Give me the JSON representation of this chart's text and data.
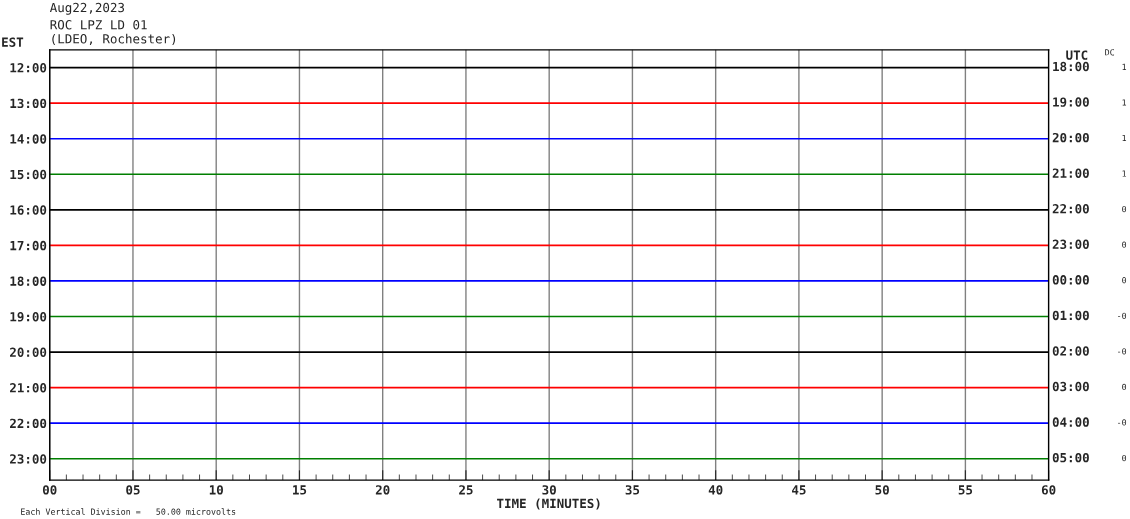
{
  "chart_data": {
    "type": "line",
    "title": "Aug22,2023",
    "subtitle": "ROC LPZ LD 01\n(LDEO, Rochester)",
    "xlabel": "TIME (MINUTES)",
    "ylabel": "EST",
    "xlim": [
      0,
      60
    ],
    "xticks": [
      {
        "value": 0,
        "label": "00"
      },
      {
        "value": 1,
        "label": null
      },
      {
        "value": 2,
        "label": null
      },
      {
        "value": 3,
        "label": null
      },
      {
        "value": 4,
        "label": null
      },
      {
        "value": 5,
        "label": "05"
      },
      {
        "value": 6,
        "label": null
      },
      {
        "value": 7,
        "label": null
      },
      {
        "value": 8,
        "label": null
      },
      {
        "value": 9,
        "label": null
      },
      10,
      {
        "value": 11,
        "label": null
      },
      {
        "value": 12,
        "label": null
      },
      {
        "value": 13,
        "label": null
      },
      {
        "value": 14,
        "label": null
      },
      15,
      {
        "value": 16,
        "label": null
      },
      {
        "value": 17,
        "label": null
      },
      {
        "value": 18,
        "label": null
      },
      {
        "value": 19,
        "label": null
      },
      20,
      {
        "value": 21,
        "label": null
      },
      {
        "value": 22,
        "label": null
      },
      {
        "value": 23,
        "label": null
      },
      {
        "value": 24,
        "label": null
      },
      25,
      {
        "value": 26,
        "label": null
      },
      {
        "value": 27,
        "label": null
      },
      {
        "value": 28,
        "label": null
      },
      {
        "value": 29,
        "label": null
      },
      30,
      {
        "value": 31,
        "label": null
      },
      {
        "value": 32,
        "label": null
      },
      {
        "value": 33,
        "label": null
      },
      {
        "value": 34,
        "label": null
      },
      35,
      {
        "value": 36,
        "label": null
      },
      {
        "value": 37,
        "label": null
      },
      {
        "value": 38,
        "label": null
      },
      {
        "value": 39,
        "label": null
      },
      40,
      {
        "value": 41,
        "label": null
      },
      {
        "value": 42,
        "label": null
      },
      {
        "value": 43,
        "label": null
      },
      {
        "value": 44,
        "label": null
      },
      45,
      {
        "value": 46,
        "label": null
      },
      {
        "value": 47,
        "label": null
      },
      {
        "value": 48,
        "label": null
      },
      {
        "value": 49,
        "label": null
      },
      50,
      {
        "value": 51,
        "label": null
      },
      {
        "value": 52,
        "label": null
      },
      {
        "value": 53,
        "label": null
      },
      {
        "value": 54,
        "label": null
      },
      55,
      {
        "value": 56,
        "label": null
      },
      {
        "value": 57,
        "label": null
      },
      {
        "value": 58,
        "label": null
      },
      {
        "value": 59,
        "label": null
      },
      60
    ],
    "ylim": [
      23.6,
      11.5
    ],
    "yticks": [
      {
        "value": 12,
        "label": "12:00"
      },
      {
        "value": 13,
        "label": "13:00"
      },
      {
        "value": 14,
        "label": "14:00"
      },
      {
        "value": 15,
        "label": "15:00"
      },
      {
        "value": 16,
        "label": "16:00"
      },
      {
        "value": 17,
        "label": "17:00"
      },
      {
        "value": 18,
        "label": "18:00"
      },
      {
        "value": 19,
        "label": "19:00"
      },
      {
        "value": 20,
        "label": "20:00"
      },
      {
        "value": 21,
        "label": "21:00"
      },
      {
        "value": 22,
        "label": "22:00"
      },
      {
        "value": 23,
        "label": "23:00"
      }
    ],
    "grid": "x",
    "x": [
      0,
      60
    ],
    "series": [
      {
        "color": "#000000",
        "values": [
          12,
          12
        ]
      },
      {
        "color": "#ff0000",
        "values": [
          13,
          13
        ]
      },
      {
        "color": "#0000ff",
        "values": [
          14,
          14
        ]
      },
      {
        "color": "#007f00",
        "values": [
          15,
          15
        ]
      },
      {
        "color": "#000000",
        "values": [
          16,
          16
        ]
      },
      {
        "color": "#ff0000",
        "values": [
          17,
          17
        ]
      },
      {
        "color": "#0000ff",
        "values": [
          18,
          18
        ]
      },
      {
        "color": "#007f00",
        "values": [
          19,
          19
        ]
      },
      {
        "color": "#000000",
        "values": [
          20,
          20
        ]
      },
      {
        "color": "#ff0000",
        "values": [
          21,
          21
        ]
      },
      {
        "color": "#0000ff",
        "values": [
          22,
          22
        ]
      },
      {
        "color": "#007f00",
        "values": [
          23,
          23
        ]
      }
    ],
    "annotations": [
      "UTC",
      "18:00",
      "19:00",
      "20:00",
      "21:00",
      "22:00",
      "23:00",
      "00:00",
      "01:00",
      "02:00",
      "03:00",
      "04:00",
      "05:00",
      "DC",
      "1",
      "1",
      "1",
      "1",
      "0",
      "0",
      "0",
      "-0",
      "-0",
      "0",
      "-0",
      "0",
      "Each Vertical Division =   50.00 microvolts"
    ]
  }
}
